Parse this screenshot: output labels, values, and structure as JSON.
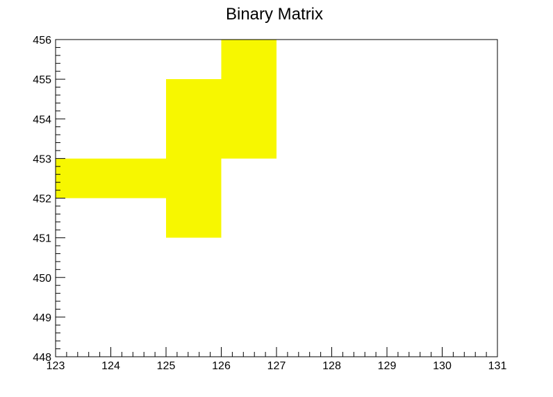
{
  "chart_data": {
    "type": "heatmap",
    "title": "Binary Matrix",
    "xlabel": "",
    "ylabel": "",
    "xlim": [
      123,
      131
    ],
    "ylim": [
      448,
      456
    ],
    "x_ticks": [
      "123",
      "124",
      "125",
      "126",
      "127",
      "128",
      "129",
      "130",
      "131"
    ],
    "y_ticks": [
      "448",
      "449",
      "450",
      "451",
      "452",
      "453",
      "454",
      "455",
      "456"
    ],
    "grid": false,
    "fill_color": "#f7f700",
    "cells": [
      {
        "x0": 123,
        "x1": 124,
        "y0": 452,
        "y1": 453,
        "value": 1
      },
      {
        "x0": 124,
        "x1": 125,
        "y0": 452,
        "y1": 453,
        "value": 1
      },
      {
        "x0": 125,
        "x1": 126,
        "y0": 451,
        "y1": 452,
        "value": 1
      },
      {
        "x0": 125,
        "x1": 126,
        "y0": 452,
        "y1": 453,
        "value": 1
      },
      {
        "x0": 125,
        "x1": 126,
        "y0": 453,
        "y1": 454,
        "value": 1
      },
      {
        "x0": 125,
        "x1": 126,
        "y0": 454,
        "y1": 455,
        "value": 1
      },
      {
        "x0": 126,
        "x1": 127,
        "y0": 453,
        "y1": 454,
        "value": 1
      },
      {
        "x0": 126,
        "x1": 127,
        "y0": 454,
        "y1": 455,
        "value": 1
      },
      {
        "x0": 126,
        "x1": 127,
        "y0": 455,
        "y1": 456,
        "value": 1
      }
    ]
  }
}
